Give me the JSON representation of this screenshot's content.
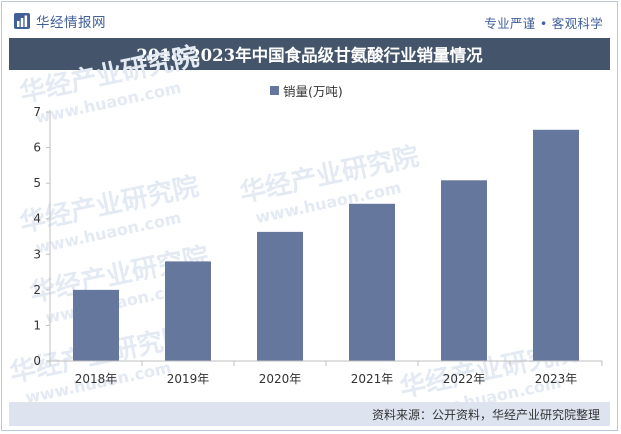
{
  "brand": {
    "name": "华经情报网",
    "slogan": "专业严谨 • 客观科学"
  },
  "watermark": {
    "cn": "华经产业研究院",
    "url": "www.huaon.com"
  },
  "colors": {
    "bar": "#66779e",
    "title_bar": "#44546a",
    "accent": "#41609a",
    "footer_bg": "#dde4f0"
  },
  "chart_data": {
    "type": "bar",
    "title": "2018-2023年中国食品级甘氨酸行业销量情况",
    "categories": [
      "2018年",
      "2019年",
      "2020年",
      "2021年",
      "2022年",
      "2023年"
    ],
    "series": [
      {
        "name": "销量(万吨)",
        "values": [
          2.0,
          2.8,
          3.63,
          4.42,
          5.08,
          6.5
        ]
      }
    ],
    "ylim": [
      0,
      7
    ],
    "yticks": [
      0,
      1,
      2,
      3,
      4,
      5,
      6,
      7
    ],
    "legend_position": "top-center",
    "grid": false
  },
  "footer": {
    "source": "资料来源：公开资料，华经产业研究院整理"
  }
}
